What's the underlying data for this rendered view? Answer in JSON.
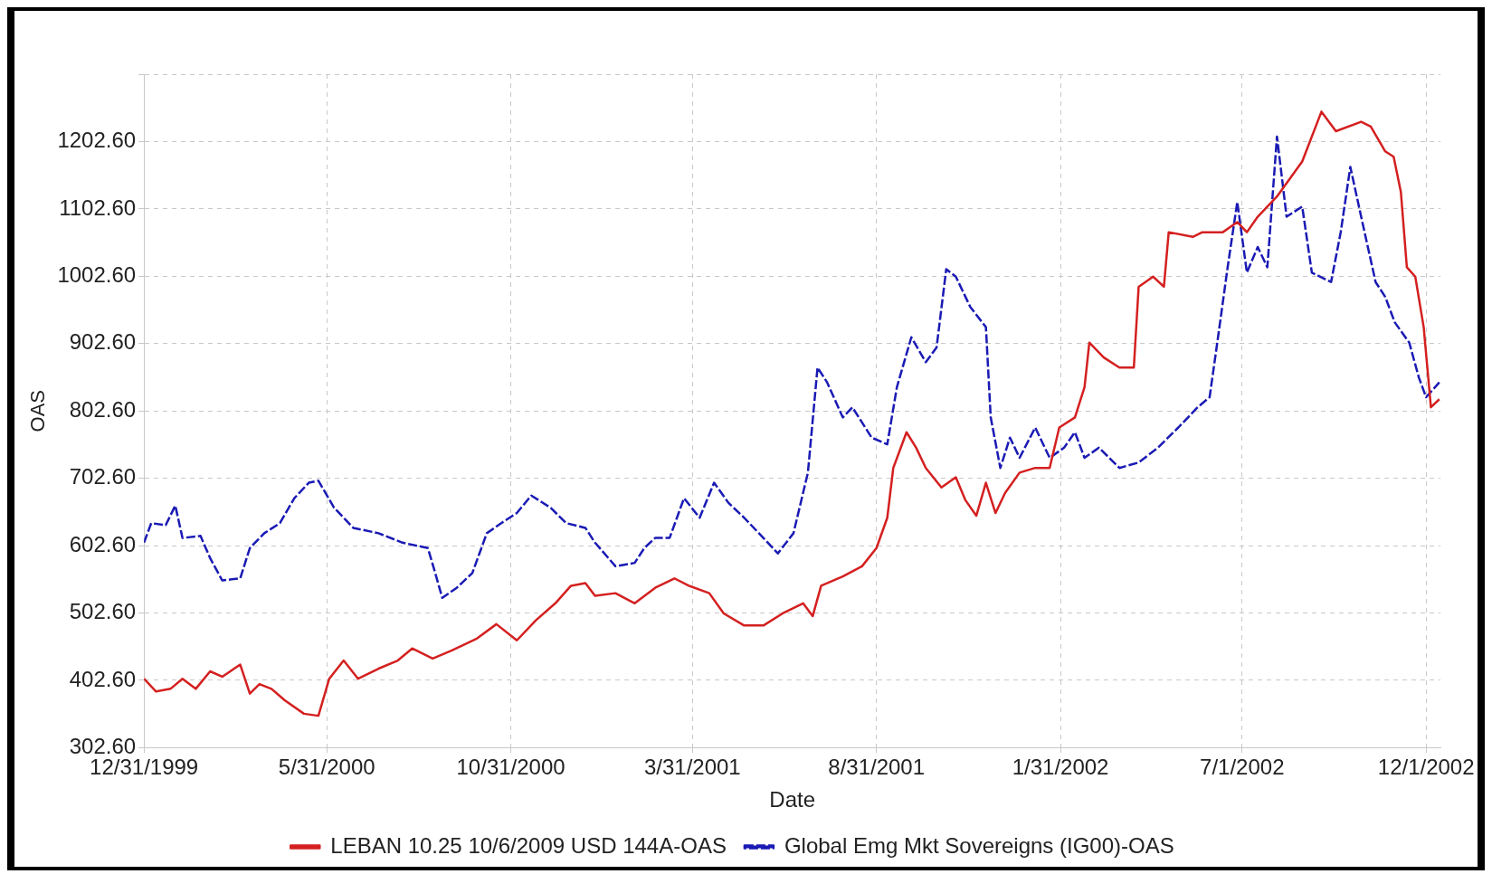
{
  "chart_data": {
    "type": "line",
    "xlabel": "Date",
    "ylabel": "OAS",
    "xlim": [
      "1999-12-31",
      "2002-12-13"
    ],
    "xticks": [
      {
        "value": "1999-12-31",
        "label": "12/31/1999"
      },
      {
        "value": "2000-05-31",
        "label": "5/31/2000"
      },
      {
        "value": "2000-10-31",
        "label": "10/31/2000"
      },
      {
        "value": "2001-03-31",
        "label": "3/31/2001"
      },
      {
        "value": "2001-08-31",
        "label": "8/31/2001"
      },
      {
        "value": "2002-01-31",
        "label": "1/31/2002"
      },
      {
        "value": "2002-07-01",
        "label": "7/1/2002"
      },
      {
        "value": "2002-12-01",
        "label": "12/1/2002"
      }
    ],
    "ylim": [
      302.6,
      1302.6
    ],
    "yticks": [
      {
        "value": 302.6,
        "label": "302.60"
      },
      {
        "value": 402.6,
        "label": "402.60"
      },
      {
        "value": 502.6,
        "label": "502.60"
      },
      {
        "value": 602.6,
        "label": "602.60"
      },
      {
        "value": 702.6,
        "label": "702.60"
      },
      {
        "value": 802.6,
        "label": "802.60"
      },
      {
        "value": 902.6,
        "label": "902.60"
      },
      {
        "value": 1002.6,
        "label": "1002.60"
      },
      {
        "value": 1102.6,
        "label": "1102.60"
      },
      {
        "value": 1202.6,
        "label": "1202.60"
      },
      {
        "value": 1302.6,
        "label": null
      }
    ],
    "grid": true,
    "legend": "bottom",
    "series": [
      {
        "name": "LEBAN 10.25 10/6/2009 USD 144A-OAS",
        "color": "#d42020",
        "line_style": "solid",
        "x": [
          "1999-12-31",
          "2000-01-10",
          "2000-01-22",
          "2000-02-01",
          "2000-02-12",
          "2000-02-24",
          "2000-03-05",
          "2000-03-20",
          "2000-03-28",
          "2000-04-05",
          "2000-04-15",
          "2000-04-26",
          "2000-05-12",
          "2000-05-24",
          "2000-06-02",
          "2000-06-14",
          "2000-06-26",
          "2000-07-13",
          "2000-07-29",
          "2000-08-10",
          "2000-08-27",
          "2000-09-12",
          "2000-10-03",
          "2000-10-19",
          "2000-11-05",
          "2000-11-21",
          "2000-12-07",
          "2000-12-20",
          "2001-01-01",
          "2001-01-09",
          "2001-01-26",
          "2001-02-11",
          "2001-02-28",
          "2001-03-16",
          "2001-03-28",
          "2001-04-14",
          "2001-04-26",
          "2001-05-13",
          "2001-05-29",
          "2001-06-14",
          "2001-07-01",
          "2001-07-09",
          "2001-07-16",
          "2001-08-03",
          "2001-08-19",
          "2001-08-31",
          "2001-09-09",
          "2001-09-14",
          "2001-09-25",
          "2001-10-03",
          "2001-10-11",
          "2001-10-24",
          "2001-11-05",
          "2001-11-13",
          "2001-11-22",
          "2001-11-30",
          "2001-12-08",
          "2001-12-16",
          "2001-12-28",
          "2002-01-10",
          "2002-01-22",
          "2002-01-30",
          "2002-02-12",
          "2002-02-20",
          "2002-02-24",
          "2002-03-08",
          "2002-03-21",
          "2002-04-02",
          "2002-04-06",
          "2002-04-18",
          "2002-04-27",
          "2002-05-01",
          "2002-05-21",
          "2002-05-29",
          "2002-06-15",
          "2002-06-27",
          "2002-07-05",
          "2002-07-14",
          "2002-07-30",
          "2002-08-20",
          "2002-09-05",
          "2002-09-17",
          "2002-10-08",
          "2002-10-16",
          "2002-10-28",
          "2002-11-04",
          "2002-11-10",
          "2002-11-15",
          "2002-11-22",
          "2002-11-29",
          "2002-12-05",
          "2002-12-12"
        ],
        "values": [
          405,
          386,
          390,
          405,
          390,
          416,
          408,
          426,
          383,
          397,
          390,
          373,
          353,
          350,
          405,
          432,
          405,
          420,
          432,
          450,
          435,
          447,
          465,
          486,
          462,
          492,
          517,
          543,
          547,
          528,
          532,
          517,
          540,
          554,
          543,
          532,
          502,
          484,
          484,
          502,
          517,
          498,
          543,
          557,
          572,
          599,
          644,
          718,
          771,
          748,
          718,
          689,
          704,
          670,
          647,
          696,
          651,
          681,
          711,
          718,
          718,
          778,
          793,
          838,
          904,
          882,
          867,
          867,
          987,
          1002,
          987,
          1068,
          1061,
          1068,
          1068,
          1083,
          1068,
          1091,
          1121,
          1173,
          1247,
          1218,
          1232,
          1225,
          1188,
          1180,
          1128,
          1016,
          1002,
          927,
          808,
          820
        ]
      },
      {
        "name": "Global Emg Mkt Sovereigns (IG00)-OAS",
        "color": "#1a1ab4",
        "line_style": "dashed",
        "x": [
          "1999-12-31",
          "2000-01-06",
          "2000-01-18",
          "2000-01-26",
          "2000-02-01",
          "2000-02-16",
          "2000-02-24",
          "2000-03-05",
          "2000-03-20",
          "2000-03-28",
          "2000-04-09",
          "2000-04-22",
          "2000-05-04",
          "2000-05-16",
          "2000-05-24",
          "2000-06-06",
          "2000-06-22",
          "2000-07-13",
          "2000-08-02",
          "2000-08-23",
          "2000-08-28",
          "2000-09-04",
          "2000-09-16",
          "2000-09-29",
          "2000-10-11",
          "2000-10-23",
          "2000-11-05",
          "2000-11-17",
          "2000-12-03",
          "2000-12-16",
          "2001-01-01",
          "2001-01-09",
          "2001-01-26",
          "2001-02-11",
          "2001-02-19",
          "2001-02-28",
          "2001-03-12",
          "2001-03-24",
          "2001-04-06",
          "2001-04-18",
          "2001-04-30",
          "2001-05-13",
          "2001-05-29",
          "2001-06-10",
          "2001-06-23",
          "2001-07-05",
          "2001-07-13",
          "2001-07-21",
          "2001-08-03",
          "2001-08-11",
          "2001-08-27",
          "2001-09-09",
          "2001-09-17",
          "2001-09-29",
          "2001-10-11",
          "2001-10-20",
          "2001-10-28",
          "2001-11-05",
          "2001-11-17",
          "2001-11-30",
          "2001-12-04",
          "2001-12-12",
          "2001-12-20",
          "2001-12-28",
          "2002-01-10",
          "2002-01-22",
          "2002-02-03",
          "2002-02-12",
          "2002-02-20",
          "2002-03-04",
          "2002-03-21",
          "2002-04-06",
          "2002-04-22",
          "2002-05-09",
          "2002-05-25",
          "2002-06-04",
          "2002-06-11",
          "2002-06-19",
          "2002-06-27",
          "2002-07-05",
          "2002-07-14",
          "2002-07-22",
          "2002-07-30",
          "2002-08-07",
          "2002-08-20",
          "2002-08-28",
          "2002-09-13",
          "2002-09-21",
          "2002-09-29",
          "2002-10-08",
          "2002-10-20",
          "2002-10-28",
          "2002-11-05",
          "2002-11-17",
          "2002-11-25",
          "2002-12-01",
          "2002-12-12"
        ],
        "values": [
          607,
          636,
          633,
          662,
          614,
          617,
          584,
          551,
          554,
          599,
          621,
          636,
          673,
          696,
          699,
          659,
          629,
          621,
          607,
          599,
          569,
          525,
          540,
          562,
          621,
          636,
          651,
          677,
          659,
          636,
          629,
          607,
          572,
          577,
          599,
          614,
          614,
          673,
          644,
          696,
          666,
          644,
          614,
          591,
          621,
          711,
          867,
          845,
          793,
          808,
          763,
          753,
          838,
          912,
          875,
          897,
          1013,
          1002,
          957,
          927,
          793,
          718,
          763,
          733,
          778,
          733,
          748,
          771,
          733,
          748,
          718,
          726,
          748,
          778,
          808,
          823,
          912,
          1016,
          1113,
          1008,
          1046,
          1016,
          1210,
          1091,
          1106,
          1008,
          994,
          1068,
          1165,
          1091,
          994,
          972,
          934,
          904,
          852,
          823,
          845
        ]
      }
    ]
  }
}
